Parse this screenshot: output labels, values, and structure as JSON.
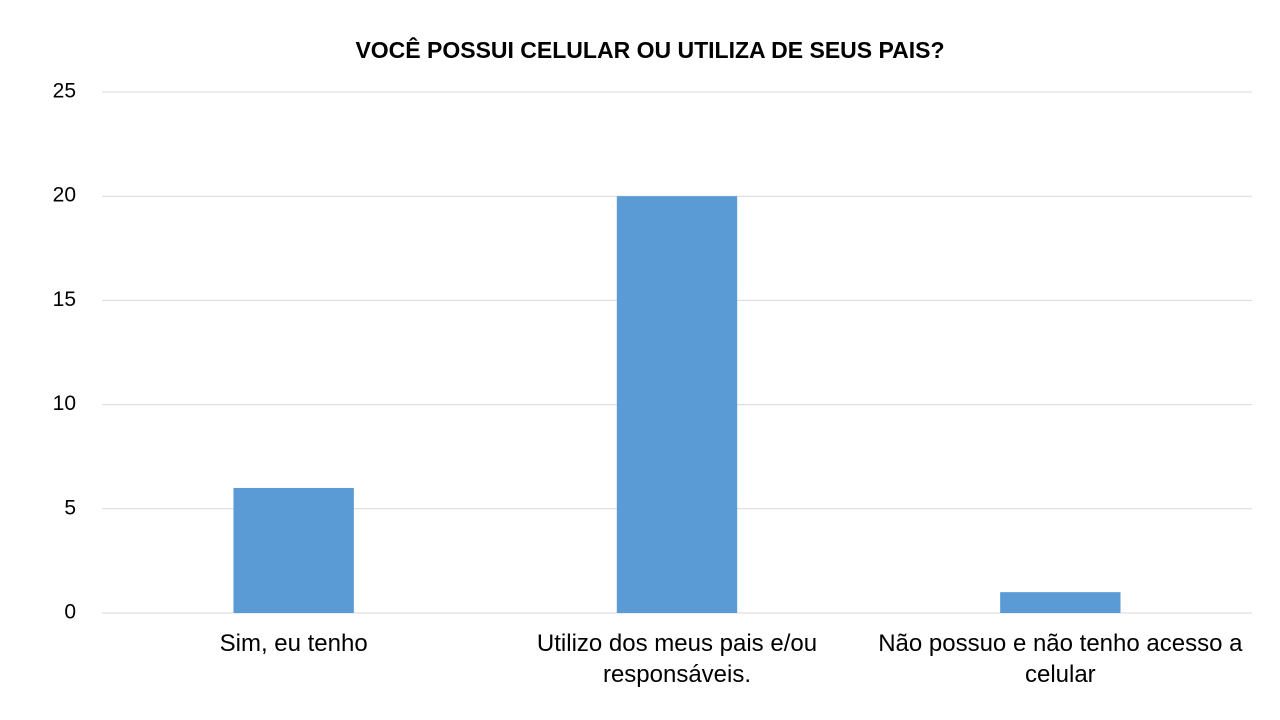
{
  "chart_data": {
    "type": "bar",
    "title": "VOCÊ POSSUI CELULAR OU UTILIZA DE SEUS PAIS?",
    "categories": [
      "Sim, eu tenho",
      "Utilizo dos meus pais e/ou responsáveis.",
      "Não possuo e não tenho acesso a celular"
    ],
    "values": [
      6,
      20,
      1
    ],
    "color": "#5b9bd5",
    "ylim": [
      0,
      25
    ],
    "yticks": [
      0,
      5,
      10,
      15,
      20,
      25
    ],
    "grid": true
  }
}
